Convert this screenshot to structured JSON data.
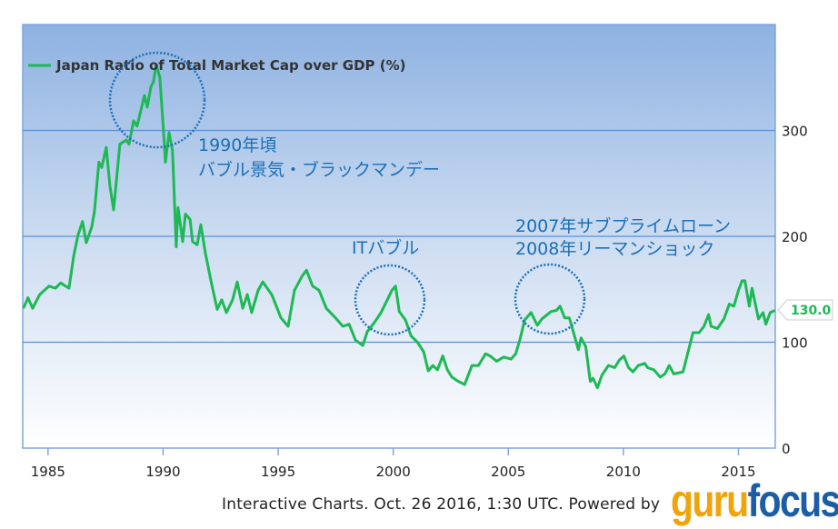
{
  "chart_data": {
    "type": "line",
    "title": "",
    "xlabel": "",
    "ylabel": "",
    "xlim": [
      1983.9,
      2016.6
    ],
    "ylim": [
      0,
      400
    ],
    "grid": true,
    "legend_position": "top-left",
    "x_ticks": [
      "1985",
      "1990",
      "1995",
      "2000",
      "2005",
      "2010",
      "2015"
    ],
    "y_ticks": [
      "0",
      "100",
      "200",
      "300"
    ],
    "series": [
      {
        "name": "Japan Ratio of Total Market Cap over GDP (%)",
        "color": "#1db954",
        "points": [
          [
            1983.93,
            132
          ],
          [
            1984.13,
            142
          ],
          [
            1984.33,
            132
          ],
          [
            1984.64,
            145
          ],
          [
            1985.04,
            153
          ],
          [
            1985.32,
            151
          ],
          [
            1985.55,
            156
          ],
          [
            1985.91,
            151
          ],
          [
            1986.11,
            181
          ],
          [
            1986.3,
            201
          ],
          [
            1986.5,
            214
          ],
          [
            1986.66,
            194
          ],
          [
            1986.9,
            209
          ],
          [
            1987.02,
            224
          ],
          [
            1987.21,
            270
          ],
          [
            1987.33,
            265
          ],
          [
            1987.53,
            284
          ],
          [
            1987.69,
            247
          ],
          [
            1987.85,
            225
          ],
          [
            1988.12,
            287
          ],
          [
            1988.4,
            291
          ],
          [
            1988.52,
            287
          ],
          [
            1988.72,
            309
          ],
          [
            1988.87,
            304
          ],
          [
            1989.19,
            333
          ],
          [
            1989.31,
            322
          ],
          [
            1989.47,
            341
          ],
          [
            1989.58,
            346
          ],
          [
            1989.7,
            362
          ],
          [
            1989.86,
            350
          ],
          [
            1990.02,
            298
          ],
          [
            1990.1,
            270
          ],
          [
            1990.26,
            298
          ],
          [
            1990.41,
            281
          ],
          [
            1990.57,
            190
          ],
          [
            1990.65,
            227
          ],
          [
            1990.85,
            195
          ],
          [
            1990.97,
            221
          ],
          [
            1991.17,
            216
          ],
          [
            1991.28,
            195
          ],
          [
            1991.48,
            192
          ],
          [
            1991.64,
            211
          ],
          [
            1991.84,
            184
          ],
          [
            1992.08,
            158
          ],
          [
            1992.35,
            131
          ],
          [
            1992.55,
            140
          ],
          [
            1992.75,
            128
          ],
          [
            1993.02,
            140
          ],
          [
            1993.22,
            157
          ],
          [
            1993.46,
            132
          ],
          [
            1993.66,
            145
          ],
          [
            1993.85,
            128
          ],
          [
            1994.13,
            149
          ],
          [
            1994.33,
            157
          ],
          [
            1994.72,
            145
          ],
          [
            1995.12,
            123
          ],
          [
            1995.43,
            115
          ],
          [
            1995.71,
            149
          ],
          [
            1996.03,
            162
          ],
          [
            1996.23,
            168
          ],
          [
            1996.5,
            153
          ],
          [
            1996.78,
            149
          ],
          [
            1997.09,
            132
          ],
          [
            1997.49,
            123
          ],
          [
            1997.81,
            115
          ],
          [
            1998.08,
            117
          ],
          [
            1998.36,
            102
          ],
          [
            1998.68,
            97
          ],
          [
            1998.87,
            110
          ],
          [
            1999.19,
            119
          ],
          [
            1999.47,
            128
          ],
          [
            1999.74,
            140
          ],
          [
            1999.94,
            149
          ],
          [
            2000.1,
            153
          ],
          [
            2000.26,
            129
          ],
          [
            2000.53,
            121
          ],
          [
            2000.77,
            106
          ],
          [
            2001.05,
            100
          ],
          [
            2001.32,
            91
          ],
          [
            2001.52,
            73
          ],
          [
            2001.72,
            78
          ],
          [
            2001.92,
            74
          ],
          [
            2002.15,
            87
          ],
          [
            2002.35,
            74
          ],
          [
            2002.55,
            67
          ],
          [
            2002.83,
            63
          ],
          [
            2003.1,
            60
          ],
          [
            2003.42,
            78
          ],
          [
            2003.7,
            78
          ],
          [
            2004.01,
            89
          ],
          [
            2004.21,
            87
          ],
          [
            2004.49,
            82
          ],
          [
            2004.8,
            86
          ],
          [
            2005.12,
            84
          ],
          [
            2005.32,
            89
          ],
          [
            2005.51,
            103
          ],
          [
            2005.71,
            121
          ],
          [
            2005.99,
            128
          ],
          [
            2006.26,
            116
          ],
          [
            2006.46,
            122
          ],
          [
            2006.86,
            129
          ],
          [
            2007.09,
            130
          ],
          [
            2007.25,
            134
          ],
          [
            2007.45,
            123
          ],
          [
            2007.65,
            123
          ],
          [
            2007.85,
            108
          ],
          [
            2008.04,
            93
          ],
          [
            2008.16,
            104
          ],
          [
            2008.36,
            96
          ],
          [
            2008.56,
            63
          ],
          [
            2008.68,
            66
          ],
          [
            2008.87,
            57
          ],
          [
            2009.07,
            69
          ],
          [
            2009.35,
            78
          ],
          [
            2009.62,
            76
          ],
          [
            2009.82,
            83
          ],
          [
            2010.02,
            87
          ],
          [
            2010.22,
            76
          ],
          [
            2010.42,
            72
          ],
          [
            2010.65,
            78
          ],
          [
            2010.93,
            80
          ],
          [
            2011.05,
            76
          ],
          [
            2011.32,
            74
          ],
          [
            2011.6,
            67
          ],
          [
            2011.8,
            70
          ],
          [
            2011.99,
            78
          ],
          [
            2012.19,
            70
          ],
          [
            2012.59,
            72
          ],
          [
            2012.79,
            89
          ],
          [
            2013.02,
            109
          ],
          [
            2013.29,
            109
          ],
          [
            2013.5,
            115
          ],
          [
            2013.7,
            126
          ],
          [
            2013.81,
            115
          ],
          [
            2014.09,
            113
          ],
          [
            2014.37,
            122
          ],
          [
            2014.6,
            136
          ],
          [
            2014.8,
            134
          ],
          [
            2015.0,
            149
          ],
          [
            2015.16,
            158
          ],
          [
            2015.28,
            158
          ],
          [
            2015.47,
            134
          ],
          [
            2015.59,
            151
          ],
          [
            2015.87,
            122
          ],
          [
            2016.07,
            128
          ],
          [
            2016.19,
            117
          ],
          [
            2016.38,
            128
          ],
          [
            2016.58,
            130
          ]
        ]
      }
    ],
    "last_value_label": "130.0",
    "annotations": [
      {
        "lines": [
          "1990年頃",
          "バブル景気・ブラックマンデー"
        ]
      },
      {
        "lines": [
          "ITバブル"
        ]
      },
      {
        "lines": [
          "2007年サブプライムローン",
          "2008年リーマンショック"
        ]
      }
    ]
  },
  "footer": {
    "text": "Interactive Charts. Oct. 26 2016, 1:30 UTC. Powered by",
    "logo_part1": "guru",
    "logo_part2": "focus"
  }
}
